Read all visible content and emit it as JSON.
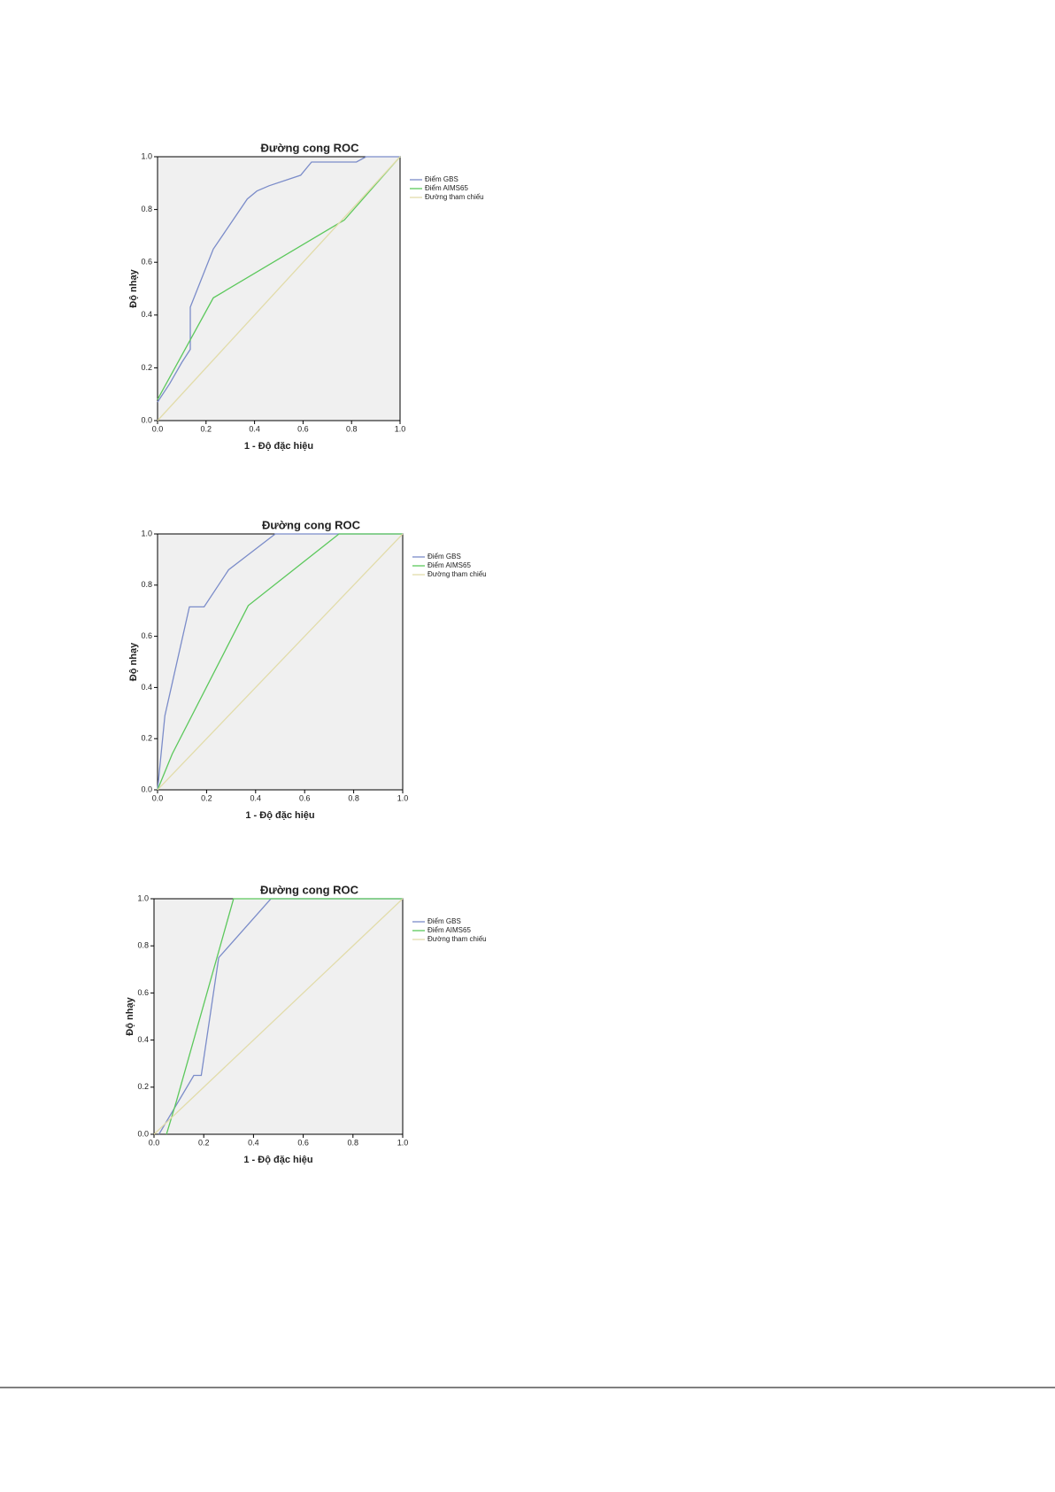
{
  "chart_data": [
    {
      "type": "line",
      "title": "Đường cong ROC",
      "xlabel": "1 - Độ đặc hiệu",
      "ylabel": "Độ nhạy",
      "xlim": [
        0,
        1
      ],
      "ylim": [
        0,
        1
      ],
      "xticks": [
        {
          "value": 0,
          "label": "0.0"
        },
        {
          "value": 0.2,
          "label": "0.2"
        },
        {
          "value": 0.4,
          "label": "0.4"
        },
        {
          "value": 0.6,
          "label": "0.6"
        },
        {
          "value": 0.8,
          "label": "0.8"
        },
        {
          "value": 1,
          "label": "1.0"
        }
      ],
      "yticks": [
        {
          "value": 0,
          "label": "0.0"
        },
        {
          "value": 0.2,
          "label": "0.2"
        },
        {
          "value": 0.4,
          "label": "0.4"
        },
        {
          "value": 0.6,
          "label": "0.6"
        },
        {
          "value": 0.8,
          "label": "0.8"
        },
        {
          "value": 1,
          "label": "1.0"
        }
      ],
      "series": [
        {
          "name": "Điểm GBS",
          "color": "#7b8cc9",
          "x": [
            0,
            0.05,
            0.1,
            0.135,
            0.135,
            0.23,
            0.37,
            0.41,
            0.46,
            0.59,
            0.635,
            0.82,
            0.86,
            1
          ],
          "values": [
            0.07,
            0.14,
            0.22,
            0.27,
            0.43,
            0.65,
            0.84,
            0.87,
            0.89,
            0.93,
            0.98,
            0.98,
            1,
            1
          ]
        },
        {
          "name": "Điểm AIMS65",
          "color": "#5cc85c",
          "x": [
            0,
            0.23,
            0.77,
            1
          ],
          "values": [
            0.08,
            0.465,
            0.76,
            1
          ]
        },
        {
          "name": "Đường tham chiếu",
          "color": "#e2dcaa",
          "x": [
            0,
            1
          ],
          "values": [
            0,
            1
          ]
        }
      ]
    },
    {
      "type": "line",
      "title": "Đường cong ROC",
      "xlabel": "1 - Độ đặc hiệu",
      "ylabel": "Độ nhạy",
      "xlim": [
        0,
        1
      ],
      "ylim": [
        0,
        1
      ],
      "xticks": [
        {
          "value": 0,
          "label": "0.0"
        },
        {
          "value": 0.2,
          "label": "0.2"
        },
        {
          "value": 0.4,
          "label": "0.4"
        },
        {
          "value": 0.6,
          "label": "0.6"
        },
        {
          "value": 0.8,
          "label": "0.8"
        },
        {
          "value": 1,
          "label": "1.0"
        }
      ],
      "yticks": [
        {
          "value": 0,
          "label": "0.0"
        },
        {
          "value": 0.2,
          "label": "0.2"
        },
        {
          "value": 0.4,
          "label": "0.4"
        },
        {
          "value": 0.6,
          "label": "0.6"
        },
        {
          "value": 0.8,
          "label": "0.8"
        },
        {
          "value": 1,
          "label": "1.0"
        }
      ],
      "series": [
        {
          "name": "Điểm GBS",
          "color": "#7b8cc9",
          "x": [
            0,
            0.03,
            0.13,
            0.19,
            0.29,
            0.48,
            1
          ],
          "values": [
            0,
            0.29,
            0.715,
            0.715,
            0.86,
            1,
            1
          ]
        },
        {
          "name": "Điểm AIMS65",
          "color": "#5cc85c",
          "x": [
            0,
            0.06,
            0.37,
            0.74,
            1
          ],
          "values": [
            0,
            0.14,
            0.72,
            1,
            1
          ]
        },
        {
          "name": "Đường tham chiếu",
          "color": "#e2dcaa",
          "x": [
            0,
            1
          ],
          "values": [
            0,
            1
          ]
        }
      ]
    },
    {
      "type": "line",
      "title": "Đường cong ROC",
      "xlabel": "1 - Độ đặc hiệu",
      "ylabel": "Độ nhạy",
      "xlim": [
        0,
        1
      ],
      "ylim": [
        0,
        1
      ],
      "xticks": [
        {
          "value": 0,
          "label": "0.0"
        },
        {
          "value": 0.2,
          "label": "0.2"
        },
        {
          "value": 0.4,
          "label": "0.4"
        },
        {
          "value": 0.6,
          "label": "0.6"
        },
        {
          "value": 0.8,
          "label": "0.8"
        },
        {
          "value": 1,
          "label": "1.0"
        }
      ],
      "yticks": [
        {
          "value": 0,
          "label": "0.0"
        },
        {
          "value": 0.2,
          "label": "0.2"
        },
        {
          "value": 0.4,
          "label": "0.4"
        },
        {
          "value": 0.6,
          "label": "0.6"
        },
        {
          "value": 0.8,
          "label": "0.8"
        },
        {
          "value": 1,
          "label": "1.0"
        }
      ],
      "series": [
        {
          "name": "Điểm GBS",
          "color": "#7b8cc9",
          "x": [
            0.02,
            0.16,
            0.19,
            0.26,
            0.47,
            1
          ],
          "values": [
            0,
            0.25,
            0.25,
            0.75,
            1,
            1
          ]
        },
        {
          "name": "Điểm AIMS65",
          "color": "#5cc85c",
          "x": [
            0.05,
            0.09,
            0.32,
            1
          ],
          "values": [
            0,
            0.14,
            1,
            1
          ]
        },
        {
          "name": "Đường tham chiếu",
          "color": "#e2dcaa",
          "x": [
            0,
            1
          ],
          "values": [
            0,
            1
          ]
        }
      ]
    }
  ]
}
